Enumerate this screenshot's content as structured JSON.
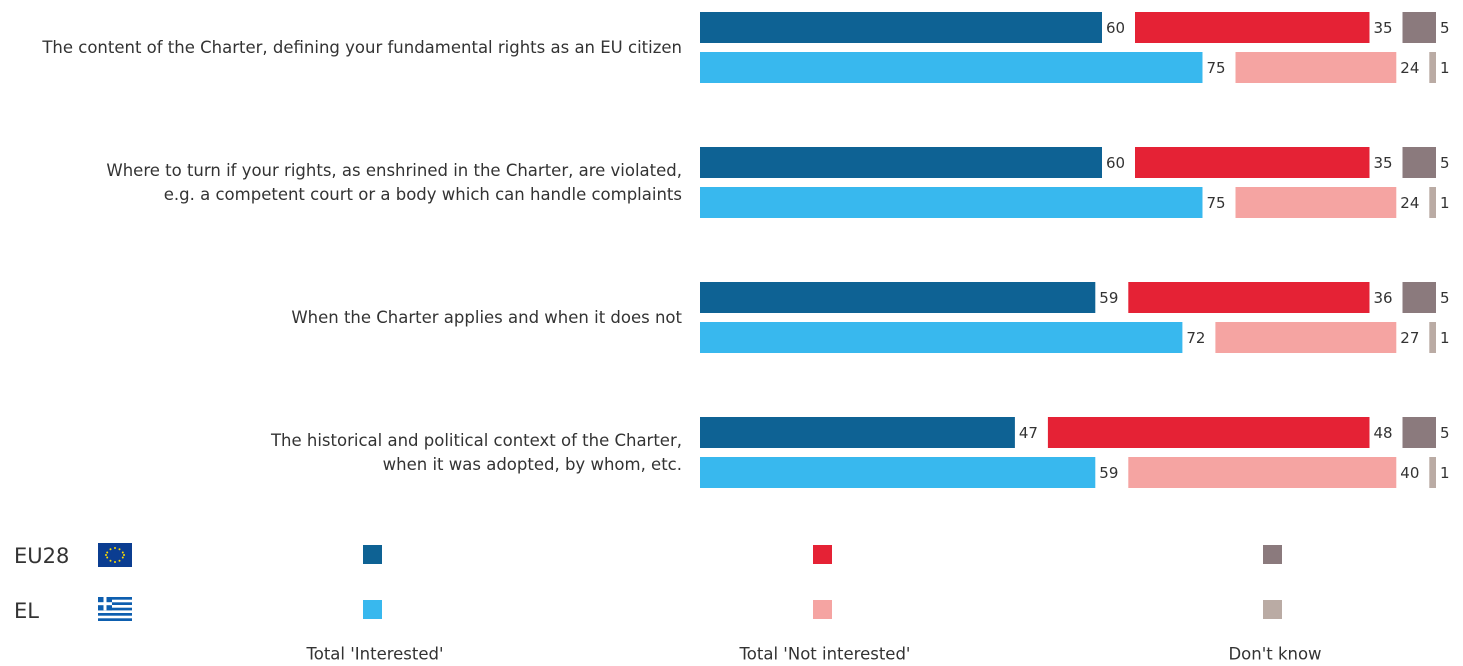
{
  "chart_data": {
    "type": "stacked-bar",
    "categories": [
      "The content of the Charter, defining your fundamental rights as an EU citizen",
      "Where to turn if your rights, as enshrined in the Charter, are violated,\ne.g. a competent court or a body which can handle complaints",
      "When the Charter applies and when it does not",
      "The historical and political context of the Charter,\nwhen it was adopted, by whom, etc."
    ],
    "rows": [
      "EU28",
      "EL"
    ],
    "series": [
      {
        "name": "Total 'Interested'",
        "colors": [
          "#0e6294",
          "#38b8ee"
        ],
        "values": [
          [
            60,
            75
          ],
          [
            60,
            75
          ],
          [
            59,
            72
          ],
          [
            47,
            59
          ]
        ]
      },
      {
        "name": "Total 'Not interested'",
        "colors": [
          "#e52235",
          "#f5a4a2"
        ],
        "values": [
          [
            35,
            24
          ],
          [
            35,
            24
          ],
          [
            36,
            27
          ],
          [
            48,
            40
          ]
        ]
      },
      {
        "name": "Don't know",
        "colors": [
          "#8b7a7d",
          "#baaba4"
        ],
        "values": [
          [
            5,
            1
          ],
          [
            5,
            1
          ],
          [
            5,
            1
          ],
          [
            5,
            1
          ]
        ]
      }
    ]
  }
}
